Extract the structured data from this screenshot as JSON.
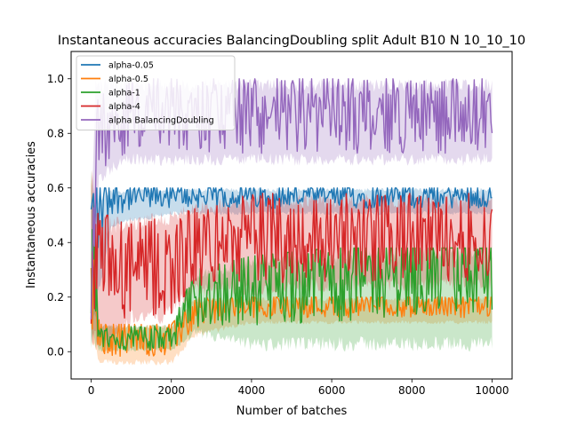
{
  "chart_data": {
    "type": "line",
    "title": "Instantaneous accuracies BalancingDoubling split Adult B10 N 10_10_10",
    "xlabel": "Number of batches",
    "ylabel": "Instantaneous accuracies",
    "xlim": [
      -500,
      10500
    ],
    "ylim": [
      -0.1,
      1.1
    ],
    "xticks": [
      0,
      2000,
      4000,
      6000,
      8000,
      10000
    ],
    "xtick_labels": [
      "0",
      "2000",
      "4000",
      "6000",
      "8000",
      "10000"
    ],
    "yticks": [
      0.0,
      0.2,
      0.4,
      0.6,
      0.8,
      1.0
    ],
    "ytick_labels": [
      "0.0",
      "0.2",
      "0.4",
      "0.6",
      "0.8",
      "1.0"
    ],
    "grid": false,
    "legend_position": "top-left",
    "series": [
      {
        "name": "alpha-0.05",
        "color": "#1f77b4",
        "x": [
          0,
          200,
          500,
          1000,
          2000,
          4000,
          6000,
          8000,
          10000
        ],
        "mean": [
          0.45,
          0.55,
          0.57,
          0.57,
          0.57,
          0.57,
          0.57,
          0.57,
          0.57
        ],
        "upper": [
          0.6,
          0.6,
          0.6,
          0.6,
          0.6,
          0.6,
          0.6,
          0.6,
          0.6
        ],
        "lower": [
          0.0,
          0.2,
          0.45,
          0.47,
          0.5,
          0.5,
          0.5,
          0.5,
          0.5
        ]
      },
      {
        "name": "alpha-0.5",
        "color": "#ff7f0e",
        "x": [
          0,
          200,
          500,
          1000,
          2000,
          2600,
          4000,
          6000,
          8000,
          10000
        ],
        "mean": [
          0.3,
          0.05,
          0.05,
          0.05,
          0.05,
          0.15,
          0.17,
          0.17,
          0.17,
          0.17
        ],
        "upper": [
          0.7,
          0.1,
          0.1,
          0.1,
          0.1,
          0.2,
          0.2,
          0.2,
          0.2,
          0.2
        ],
        "lower": [
          0.0,
          -0.05,
          -0.05,
          -0.05,
          -0.05,
          0.05,
          0.1,
          0.1,
          0.1,
          0.1
        ]
      },
      {
        "name": "alpha-1",
        "color": "#2ca02c",
        "x": [
          0,
          200,
          500,
          1000,
          2000,
          2600,
          4000,
          6000,
          8000,
          10000
        ],
        "mean": [
          0.3,
          0.05,
          0.05,
          0.05,
          0.05,
          0.2,
          0.25,
          0.28,
          0.3,
          0.3
        ],
        "upper": [
          0.7,
          0.1,
          0.1,
          0.1,
          0.1,
          0.3,
          0.35,
          0.38,
          0.38,
          0.38
        ],
        "lower": [
          0.0,
          0.0,
          0.0,
          0.0,
          0.0,
          0.05,
          0.0,
          0.0,
          0.0,
          0.0
        ]
      },
      {
        "name": "alpha-4",
        "color": "#d62728",
        "x": [
          0,
          200,
          500,
          1000,
          1800,
          2600,
          4000,
          6000,
          8000,
          10000
        ],
        "mean": [
          0.3,
          0.3,
          0.3,
          0.3,
          0.3,
          0.38,
          0.42,
          0.42,
          0.42,
          0.42
        ],
        "upper": [
          0.7,
          0.5,
          0.5,
          0.5,
          0.52,
          0.55,
          0.58,
          0.58,
          0.58,
          0.58
        ],
        "lower": [
          0.0,
          0.0,
          0.0,
          0.1,
          0.1,
          0.2,
          0.2,
          0.22,
          0.22,
          0.22
        ]
      },
      {
        "name": "alpha BalancingDoubling",
        "color": "#9467bd",
        "x": [
          0,
          100,
          200,
          500,
          1000,
          2000,
          4000,
          6000,
          8000,
          10000
        ],
        "mean": [
          0.2,
          0.6,
          0.8,
          0.85,
          0.87,
          0.87,
          0.87,
          0.87,
          0.87,
          0.87
        ],
        "upper": [
          0.5,
          1.0,
          1.0,
          1.0,
          1.0,
          1.0,
          1.0,
          1.0,
          1.0,
          1.0
        ],
        "lower": [
          0.1,
          0.4,
          0.6,
          0.65,
          0.68,
          0.68,
          0.68,
          0.68,
          0.68,
          0.68
        ]
      }
    ]
  }
}
